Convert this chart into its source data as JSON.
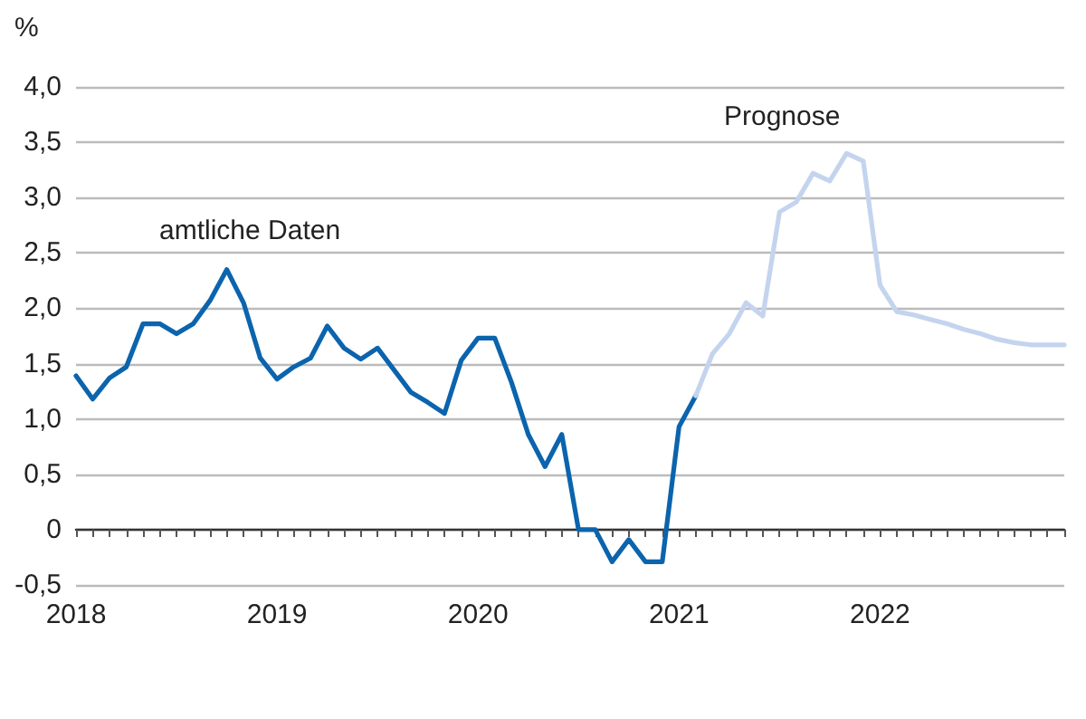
{
  "chart_data": {
    "type": "line",
    "ylabel": "%",
    "categories": [
      "2018",
      null,
      null,
      null,
      null,
      null,
      null,
      null,
      null,
      null,
      null,
      null,
      "2019",
      null,
      null,
      null,
      null,
      null,
      null,
      null,
      null,
      null,
      null,
      null,
      "2020",
      null,
      null,
      null,
      null,
      null,
      null,
      null,
      null,
      null,
      null,
      null,
      "2021",
      null,
      null,
      null,
      null,
      null,
      null,
      null,
      null,
      null,
      null,
      null,
      "2022",
      null,
      null,
      null,
      null,
      null,
      null,
      null,
      null,
      null,
      null,
      null
    ],
    "series": [
      {
        "name": "amtliche Daten",
        "color": "#0b64ad",
        "values": [
          1.39,
          1.18,
          1.37,
          1.47,
          1.86,
          1.86,
          1.77,
          1.86,
          2.07,
          2.35,
          2.05,
          1.55,
          1.36,
          1.47,
          1.55,
          1.84,
          1.64,
          1.54,
          1.64,
          1.44,
          1.24,
          1.15,
          1.05,
          1.53,
          1.73,
          1.73,
          1.33,
          0.86,
          0.57,
          0.86,
          0,
          0,
          -0.29,
          -0.09,
          -0.29,
          -0.29,
          0.93,
          1.21,
          null,
          null,
          null,
          null,
          null,
          null,
          null,
          null,
          null,
          null,
          null,
          null,
          null,
          null,
          null,
          null,
          null,
          null,
          null,
          null,
          null,
          null
        ]
      },
      {
        "name": "Prognose",
        "color": "#c5d4ee",
        "values": [
          null,
          null,
          null,
          null,
          null,
          null,
          null,
          null,
          null,
          null,
          null,
          null,
          null,
          null,
          null,
          null,
          null,
          null,
          null,
          null,
          null,
          null,
          null,
          null,
          null,
          null,
          null,
          null,
          null,
          null,
          null,
          null,
          null,
          null,
          null,
          null,
          null,
          1.21,
          1.59,
          1.77,
          2.05,
          1.93,
          2.87,
          2.96,
          3.22,
          3.15,
          3.4,
          3.33,
          2.21,
          1.97,
          1.94,
          1.9,
          1.86,
          1.81,
          1.77,
          1.72,
          1.69,
          1.67,
          1.67,
          1.67
        ]
      }
    ],
    "ylim": [
      -0.5,
      4
    ],
    "yticks": [
      {
        "value": -0.5,
        "label": "-0,5"
      },
      0,
      {
        "value": 0.5,
        "label": "0,5"
      },
      {
        "value": 1,
        "label": "1,0"
      },
      {
        "value": 1.5,
        "label": "1,5"
      },
      {
        "value": 2,
        "label": "2,0"
      },
      {
        "value": 2.5,
        "label": "2,5"
      },
      {
        "value": 3,
        "label": "3,0"
      },
      {
        "value": 3.5,
        "label": "3,5"
      },
      {
        "value": 4,
        "label": "4,0"
      }
    ],
    "grid": "y",
    "legend": false,
    "marker": "none",
    "line_style": "solid"
  }
}
